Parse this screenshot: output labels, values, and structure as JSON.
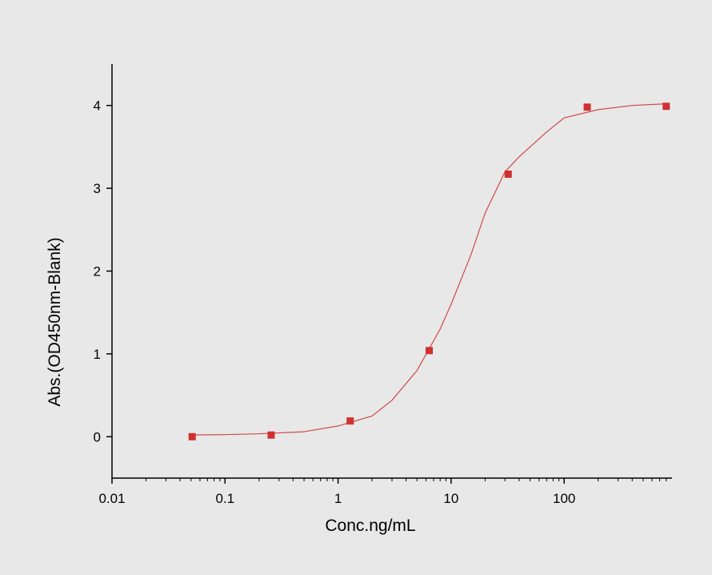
{
  "chart_data": {
    "type": "scatter",
    "x_label": "Conc.ng/mL",
    "y_label": "Abs.(OD450nm-Blank)",
    "x": [
      0.0512,
      0.256,
      1.28,
      6.4,
      32,
      160,
      800
    ],
    "values": [
      0.0,
      0.02,
      0.19,
      1.04,
      3.17,
      3.98,
      3.99
    ],
    "color": "#d03030",
    "curve": {
      "color": "#d04848",
      "x": [
        0.0512,
        0.1,
        0.2,
        0.5,
        1,
        2,
        3,
        5,
        8,
        10,
        15,
        20,
        30,
        40,
        70,
        100,
        200,
        400,
        800
      ],
      "values": [
        0.02,
        0.025,
        0.035,
        0.06,
        0.13,
        0.25,
        0.44,
        0.8,
        1.3,
        1.6,
        2.2,
        2.7,
        3.2,
        3.38,
        3.68,
        3.85,
        3.95,
        4.0,
        4.02
      ]
    },
    "xscale": "log",
    "xlim": [
      0.01,
      900
    ],
    "ylim": [
      -0.5,
      4.5
    ],
    "xticks": [
      0.01,
      0.1,
      1,
      10,
      100
    ],
    "xminorticks": [
      0.02,
      0.03,
      0.04,
      0.05,
      0.06,
      0.07,
      0.08,
      0.09,
      0.2,
      0.3,
      0.4,
      0.5,
      0.6,
      0.7,
      0.8,
      0.9,
      2,
      3,
      4,
      5,
      6,
      7,
      8,
      9,
      20,
      30,
      40,
      50,
      60,
      70,
      80,
      90,
      200,
      300,
      400,
      500,
      600,
      700,
      800
    ],
    "yticks": [
      0,
      1,
      2,
      3,
      4
    ],
    "grid": false
  }
}
